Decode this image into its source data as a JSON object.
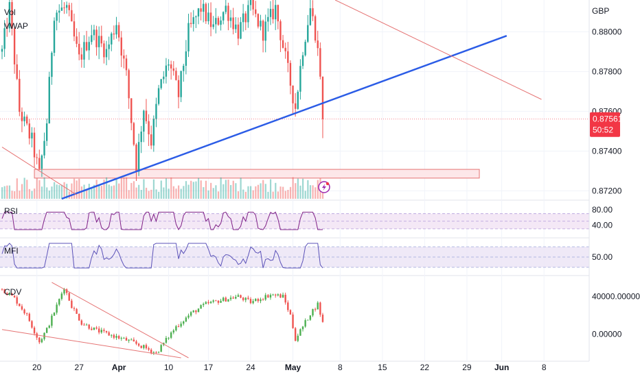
{
  "chart_data": {
    "type": "candlestick",
    "currency": "GBP",
    "x_axis": {
      "ticks": [
        {
          "label": "20",
          "idx": 14
        },
        {
          "label": "27",
          "idx": 31
        },
        {
          "label": "Apr",
          "idx": 47
        },
        {
          "label": "10",
          "idx": 67
        },
        {
          "label": "17",
          "idx": 83
        },
        {
          "label": "24",
          "idx": 100
        },
        {
          "label": "May",
          "idx": 117
        },
        {
          "label": "8",
          "idx": 136
        },
        {
          "label": "15",
          "idx": 153
        },
        {
          "label": "22",
          "idx": 170
        },
        {
          "label": "29",
          "idx": 187
        },
        {
          "label": "Jun",
          "idx": 201
        },
        {
          "label": "8",
          "idx": 218
        }
      ],
      "last_bar_idx": 129
    },
    "price_pane": {
      "labels": [
        "Vol",
        "VWAP"
      ],
      "ylim": [
        0.8716,
        0.8816
      ],
      "ticks": [
        "0.88000",
        "0.87800",
        "0.87600",
        "0.87400",
        "0.87200"
      ],
      "tick_values": [
        0.88,
        0.878,
        0.876,
        0.874,
        0.872
      ],
      "last_price": "0.87561",
      "last_price_value": 0.87561,
      "countdown": "50:52",
      "support_zone": {
        "from_idx": 13,
        "to_idx": 192,
        "low": 0.87264,
        "high": 0.87308
      },
      "trendline_blue": {
        "from": {
          "idx": 24,
          "price": 0.8716
        },
        "to": {
          "idx": 203,
          "price": 0.8798
        }
      },
      "trendline_red_upper": {
        "from": {
          "idx": 134,
          "price": 0.8816
        },
        "to": {
          "idx": 217,
          "price": 0.8766
        }
      },
      "trendline_red_lower": {
        "from": {
          "idx": 0,
          "price": 0.8742
        },
        "to": {
          "idx": 30,
          "price": 0.8718
        }
      }
    },
    "rsi_pane": {
      "label": "RSI",
      "ylim": [
        10,
        100
      ],
      "ticks": [
        "80.00",
        "40.00"
      ],
      "tick_values": [
        80,
        40
      ],
      "band": [
        30,
        70
      ]
    },
    "mfi_pane": {
      "label": "MFI",
      "ylim": [
        0,
        100
      ],
      "ticks": [
        "50.00"
      ],
      "tick_values": [
        50
      ],
      "band": [
        20,
        80
      ]
    },
    "cdv_pane": {
      "label": "CDV",
      "ylim": [
        -25000,
        60000
      ],
      "ticks": [
        "40000.00000",
        "0.00000"
      ],
      "tick_values": [
        40000,
        0
      ]
    },
    "colors": {
      "up": "#26a69a",
      "up_bright": "#4caf50",
      "down": "#ef5350",
      "trend_blue": "#2b5ce6",
      "trend_red": "#e57373",
      "rsi_line": "#7e1f86",
      "mfi_line": "#5b52b8",
      "rsi_band": "#f3e5f5",
      "mfi_band": "#ede7f6",
      "support_fill": "#fde7e9",
      "support_border": "#e57373",
      "price_tag": "#f23645",
      "grid": "#f0f3fa",
      "divider": "#e0e3eb"
    }
  },
  "ui": {
    "lightning_icon": "lightning-icon"
  }
}
